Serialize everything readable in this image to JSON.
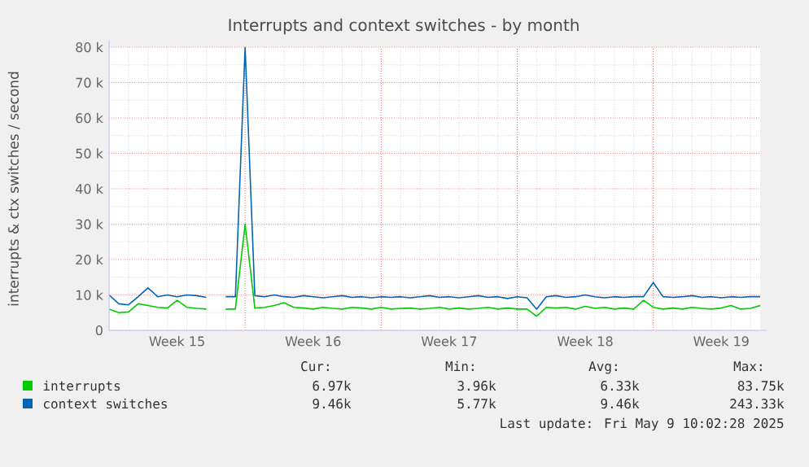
{
  "chart_data": {
    "type": "line",
    "title": "Interrupts and context switches - by month",
    "ylabel": "interrupts & ctx switches / second",
    "categories": [
      null,
      null,
      null,
      null,
      null,
      null,
      null,
      "Week 15",
      null,
      null,
      null,
      null,
      null,
      null,
      null,
      null,
      null,
      null,
      null,
      null,
      null,
      "Week 16",
      null,
      null,
      null,
      null,
      null,
      null,
      null,
      null,
      null,
      null,
      null,
      null,
      null,
      "Week 17",
      null,
      null,
      null,
      null,
      null,
      null,
      null,
      null,
      null,
      null,
      null,
      null,
      null,
      "Week 18",
      null,
      null,
      null,
      null,
      null,
      null,
      null,
      null,
      null,
      null,
      null,
      null,
      null,
      "Week 19",
      null,
      null,
      null,
      null
    ],
    "series": [
      {
        "name": "interrupts",
        "color": "#00cc00",
        "values": [
          6000,
          5000,
          5200,
          7500,
          7000,
          6500,
          6300,
          8500,
          6500,
          6200,
          6000,
          null,
          6000,
          6000,
          30000,
          6300,
          6500,
          7000,
          7800,
          6500,
          6300,
          6000,
          6500,
          6200,
          6000,
          6500,
          6300,
          6000,
          6500,
          6000,
          6200,
          6300,
          6000,
          6200,
          6500,
          6000,
          6300,
          6000,
          6200,
          6500,
          6000,
          6300,
          6000,
          6000,
          4000,
          6500,
          6300,
          6500,
          6000,
          6800,
          6200,
          6500,
          6000,
          6300,
          6000,
          8500,
          6500,
          6000,
          6300,
          6000,
          6500,
          6200,
          6000,
          6300,
          7000,
          6000,
          6200,
          7000
        ]
      },
      {
        "name": "context switches",
        "color": "#0066b3",
        "values": [
          10000,
          7500,
          7200,
          9500,
          12000,
          9500,
          10000,
          9500,
          10000,
          9800,
          9300,
          null,
          9500,
          9500,
          80000,
          9800,
          9500,
          10000,
          9500,
          9300,
          9800,
          9500,
          9200,
          9500,
          9800,
          9300,
          9500,
          9200,
          9500,
          9300,
          9500,
          9200,
          9500,
          9800,
          9300,
          9500,
          9200,
          9500,
          9800,
          9300,
          9500,
          9000,
          9500,
          9200,
          6000,
          9500,
          9800,
          9300,
          9500,
          10000,
          9500,
          9200,
          9500,
          9300,
          9500,
          9500,
          13500,
          9500,
          9300,
          9500,
          9800,
          9300,
          9500,
          9200,
          9500,
          9300,
          9500,
          9500
        ]
      }
    ],
    "ylim": [
      0,
      80000
    ],
    "yticks": [
      0,
      {
        "value": 10000,
        "label": "10 k"
      },
      {
        "value": 20000,
        "label": "20 k"
      },
      {
        "value": 30000,
        "label": "30 k"
      },
      {
        "value": 40000,
        "label": "40 k"
      },
      {
        "value": 50000,
        "label": "50 k"
      },
      {
        "value": 60000,
        "label": "60 k"
      },
      {
        "value": 70000,
        "label": "70 k"
      },
      {
        "value": 80000,
        "label": "80 k"
      }
    ],
    "grid": true,
    "legend": "bottom left",
    "annotations": [
      "Cur:",
      "Min:",
      "Avg:",
      "Max:",
      "6.97k",
      "3.96k",
      "6.33k",
      "83.75k",
      "9.46k",
      "5.77k",
      "9.46k",
      "243.33k",
      "Last update: Fri May  9 10:02:28 2025"
    ]
  }
}
